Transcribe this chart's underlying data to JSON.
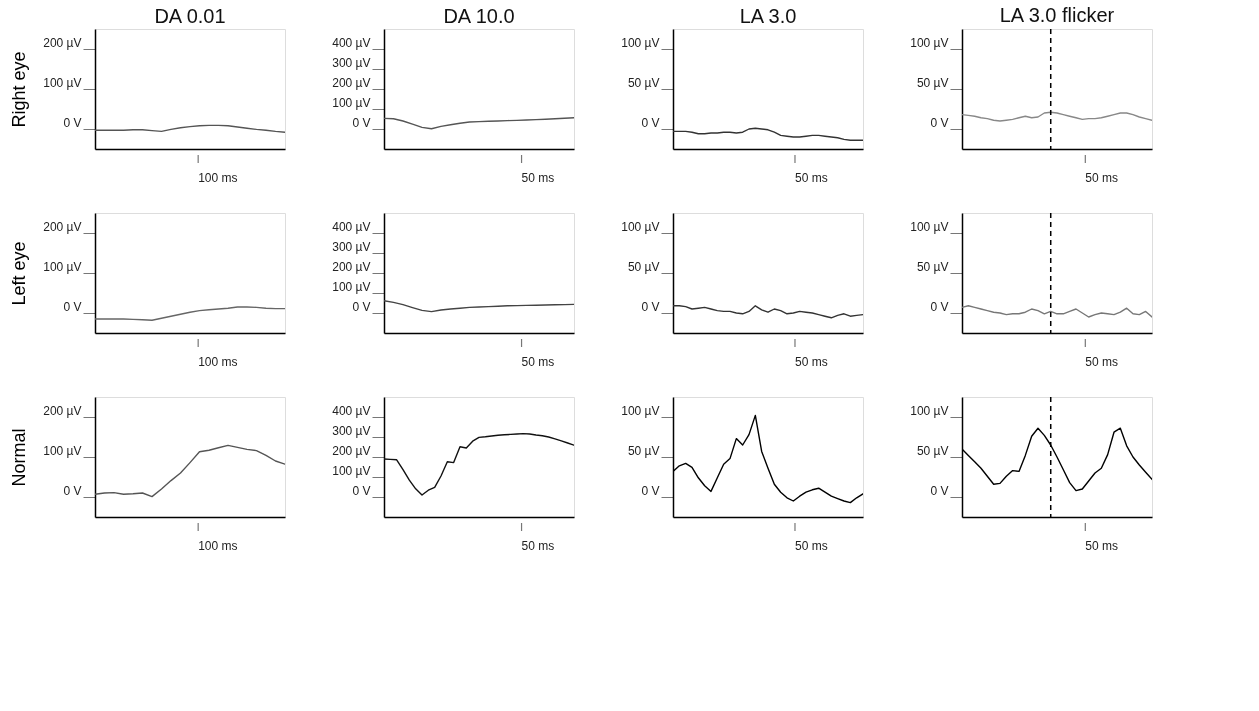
{
  "chart_data": [
    {
      "type": "line",
      "title": "DA 0.01",
      "ylabel": "Right eye",
      "grid": false,
      "categories": [
        null,
        null,
        null,
        null,
        null,
        null,
        null,
        null,
        null,
        null,
        null,
        null,
        null,
        null,
        null,
        null,
        null,
        null,
        null,
        null,
        null
      ],
      "ylim": [
        -50,
        250
      ],
      "yticks": [
        {
          "value": 0,
          "label": "0 V"
        },
        {
          "value": 100,
          "label": "100 µV"
        },
        {
          "value": 200,
          "label": "200 µV"
        }
      ],
      "annotations": [
        "100 ms"
      ],
      "series": [
        {
          "color": "#555555",
          "values": [
            -3,
            -3,
            -3,
            -3,
            -2,
            -2,
            -4,
            -6,
            -1,
            3,
            6,
            8,
            9,
            9,
            8,
            5,
            2,
            -1,
            -3,
            -6,
            -8
          ]
        }
      ]
    },
    {
      "type": "line",
      "title": "DA 10.0",
      "grid": false,
      "categories": [
        null,
        null,
        null,
        null,
        null,
        null,
        null,
        null,
        null,
        null,
        null,
        null,
        null,
        null,
        null,
        null,
        null,
        null,
        null,
        null,
        null
      ],
      "ylim": [
        -100,
        500
      ],
      "yticks": [
        {
          "value": 0,
          "label": "0 V"
        },
        {
          "value": 100,
          "label": "100 µV"
        },
        {
          "value": 200,
          "label": "200 µV"
        },
        {
          "value": 300,
          "label": "300 µV"
        },
        {
          "value": 400,
          "label": "400 µV"
        }
      ],
      "annotations": [
        "50 ms"
      ],
      "series": [
        {
          "color": "#555555",
          "values": [
            53,
            51,
            40,
            24,
            8,
            1,
            13,
            21,
            29,
            35,
            37,
            39,
            40,
            42,
            43,
            45,
            47,
            49,
            51,
            54,
            56
          ]
        }
      ]
    },
    {
      "type": "line",
      "title": "LA 3.0",
      "grid": false,
      "categories": [
        null,
        null,
        null,
        null,
        null,
        null,
        null,
        null,
        null,
        null,
        null,
        null,
        null,
        null,
        null,
        null,
        null,
        null,
        null,
        null,
        null,
        null,
        null,
        null,
        null,
        null,
        null,
        null,
        null,
        null,
        null
      ],
      "ylim": [
        -25,
        125
      ],
      "yticks": [
        {
          "value": 0,
          "label": "0 V"
        },
        {
          "value": 50,
          "label": "50 µV"
        },
        {
          "value": 100,
          "label": "100 µV"
        }
      ],
      "annotations": [
        "50 ms"
      ],
      "series": [
        {
          "color": "#333333",
          "values": [
            -3,
            -3,
            -3,
            -4,
            -6,
            -6,
            -5,
            -5,
            -4,
            -4,
            -5,
            -4,
            0,
            1,
            0,
            -1,
            -4,
            -8,
            -9,
            -10,
            -10,
            -9,
            -8,
            -8,
            -9,
            -10,
            -11,
            -13,
            -14,
            -14,
            -14
          ]
        }
      ]
    },
    {
      "type": "line",
      "title": "LA 3.0 flicker",
      "grid": false,
      "categories": [
        null,
        null,
        null,
        null,
        null,
        null,
        null,
        null,
        null,
        null,
        null,
        null,
        null,
        null,
        null,
        null,
        null,
        null,
        null,
        null,
        null,
        null,
        null,
        null,
        null,
        null,
        null,
        null,
        null,
        null,
        null
      ],
      "ylim": [
        -25,
        125
      ],
      "yticks": [
        {
          "value": 0,
          "label": "0 V"
        },
        {
          "value": 50,
          "label": "50 µV"
        },
        {
          "value": 100,
          "label": "100 µV"
        }
      ],
      "annotations": [
        "50 ms"
      ],
      "series": [
        {
          "color": "#888888",
          "values": [
            18,
            17,
            16,
            14,
            13,
            11,
            10,
            11,
            12,
            14,
            16,
            14,
            15,
            20,
            21,
            20,
            18,
            16,
            14,
            12,
            13,
            13,
            14,
            16,
            18,
            20,
            20,
            18,
            15,
            13,
            11
          ]
        }
      ]
    },
    {
      "type": "line",
      "ylabel": "Left eye",
      "grid": false,
      "categories": [
        null,
        null,
        null,
        null,
        null,
        null,
        null,
        null,
        null,
        null,
        null,
        null,
        null,
        null,
        null,
        null,
        null,
        null,
        null,
        null,
        null
      ],
      "ylim": [
        -50,
        250
      ],
      "yticks": [
        {
          "value": 0,
          "label": "0 V"
        },
        {
          "value": 100,
          "label": "100 µV"
        },
        {
          "value": 200,
          "label": "200 µV"
        }
      ],
      "annotations": [
        "100 ms"
      ],
      "series": [
        {
          "color": "#666666",
          "values": [
            -15,
            -15,
            -15,
            -15,
            -16,
            -17,
            -18,
            -13,
            -8,
            -3,
            2,
            6,
            8,
            10,
            12,
            15,
            15,
            14,
            12,
            11,
            11
          ]
        }
      ]
    },
    {
      "type": "line",
      "grid": false,
      "categories": [
        null,
        null,
        null,
        null,
        null,
        null,
        null,
        null,
        null,
        null,
        null,
        null,
        null,
        null,
        null,
        null,
        null,
        null,
        null,
        null,
        null
      ],
      "ylim": [
        -100,
        500
      ],
      "yticks": [
        {
          "value": 0,
          "label": "0 V"
        },
        {
          "value": 100,
          "label": "100 µV"
        },
        {
          "value": 200,
          "label": "200 µV"
        },
        {
          "value": 300,
          "label": "300 µV"
        },
        {
          "value": 400,
          "label": "400 µV"
        }
      ],
      "annotations": [
        "50 ms"
      ],
      "series": [
        {
          "color": "#444444",
          "values": [
            61,
            53,
            42,
            27,
            13,
            7,
            15,
            20,
            24,
            28,
            30,
            32,
            34,
            36,
            37,
            38,
            39,
            40,
            41,
            42,
            43
          ]
        }
      ]
    },
    {
      "type": "line",
      "grid": false,
      "categories": [
        null,
        null,
        null,
        null,
        null,
        null,
        null,
        null,
        null,
        null,
        null,
        null,
        null,
        null,
        null,
        null,
        null,
        null,
        null,
        null,
        null,
        null,
        null,
        null,
        null,
        null,
        null,
        null,
        null,
        null,
        null
      ],
      "ylim": [
        -25,
        125
      ],
      "yticks": [
        {
          "value": 0,
          "label": "0 V"
        },
        {
          "value": 50,
          "label": "50 µV"
        },
        {
          "value": 100,
          "label": "100 µV"
        }
      ],
      "annotations": [
        "50 ms"
      ],
      "series": [
        {
          "color": "#333333",
          "values": [
            9,
            9,
            8,
            5,
            6,
            7,
            5,
            3,
            2,
            2,
            0,
            -1,
            2,
            9,
            4,
            1,
            5,
            3,
            -1,
            0,
            2,
            1,
            0,
            -2,
            -4,
            -6,
            -3,
            -1,
            -4,
            -3,
            -2
          ]
        }
      ]
    },
    {
      "type": "line",
      "grid": false,
      "categories": [
        null,
        null,
        null,
        null,
        null,
        null,
        null,
        null,
        null,
        null,
        null,
        null,
        null,
        null,
        null,
        null,
        null,
        null,
        null,
        null,
        null,
        null,
        null,
        null,
        null,
        null,
        null,
        null,
        null,
        null,
        null
      ],
      "ylim": [
        -25,
        125
      ],
      "yticks": [
        {
          "value": 0,
          "label": "0 V"
        },
        {
          "value": 50,
          "label": "50 µV"
        },
        {
          "value": 100,
          "label": "100 µV"
        }
      ],
      "annotations": [
        "50 ms"
      ],
      "series": [
        {
          "color": "#777777",
          "values": [
            7,
            9,
            7,
            5,
            3,
            1,
            0,
            -2,
            -1,
            -1,
            1,
            5,
            3,
            -1,
            2,
            -1,
            -1,
            2,
            5,
            0,
            -5,
            -2,
            0,
            -1,
            -2,
            1,
            6,
            -1,
            -2,
            2,
            -5
          ]
        }
      ]
    },
    {
      "type": "line",
      "ylabel": "Normal",
      "grid": false,
      "categories": [
        null,
        null,
        null,
        null,
        null,
        null,
        null,
        null,
        null,
        null,
        null,
        null,
        null,
        null,
        null,
        null,
        null,
        null,
        null,
        null,
        null
      ],
      "ylim": [
        -50,
        250
      ],
      "yticks": [
        {
          "value": 0,
          "label": "0 V"
        },
        {
          "value": 100,
          "label": "100 µV"
        },
        {
          "value": 200,
          "label": "200 µV"
        }
      ],
      "annotations": [
        "100 ms"
      ],
      "series": [
        {
          "color": "#555555",
          "values": [
            7,
            10,
            11,
            7,
            8,
            10,
            1,
            20,
            41,
            60,
            86,
            113,
            117,
            123,
            129,
            124,
            119,
            116,
            104,
            90,
            82
          ]
        }
      ]
    },
    {
      "type": "line",
      "grid": false,
      "categories": [
        null,
        null,
        null,
        null,
        null,
        null,
        null,
        null,
        null,
        null,
        null,
        null,
        null,
        null,
        null,
        null,
        null,
        null,
        null,
        null,
        null,
        null,
        null,
        null,
        null,
        null,
        null,
        null,
        null,
        null,
        null
      ],
      "ylim": [
        -100,
        500
      ],
      "yticks": [
        {
          "value": 0,
          "label": "0 V"
        },
        {
          "value": 100,
          "label": "100 µV"
        },
        {
          "value": 200,
          "label": "200 µV"
        },
        {
          "value": 300,
          "label": "300 µV"
        },
        {
          "value": 400,
          "label": "400 µV"
        }
      ],
      "annotations": [
        "50 ms"
      ],
      "series": [
        {
          "color": "#111111",
          "values": [
            190,
            188,
            186,
            137,
            84,
            41,
            10,
            34,
            48,
            105,
            176,
            172,
            251,
            245,
            279,
            298,
            301,
            305,
            309,
            311,
            313,
            315,
            317,
            315,
            310,
            306,
            300,
            291,
            281,
            270,
            259
          ]
        }
      ]
    },
    {
      "type": "line",
      "grid": false,
      "categories": [
        null,
        null,
        null,
        null,
        null,
        null,
        null,
        null,
        null,
        null,
        null,
        null,
        null,
        null,
        null,
        null,
        null,
        null,
        null,
        null,
        null,
        null,
        null,
        null,
        null,
        null,
        null,
        null,
        null,
        null,
        null
      ],
      "ylim": [
        -25,
        125
      ],
      "yticks": [
        {
          "value": 0,
          "label": "0 V"
        },
        {
          "value": 50,
          "label": "50 µV"
        },
        {
          "value": 100,
          "label": "100 µV"
        }
      ],
      "annotations": [
        "50 ms"
      ],
      "series": [
        {
          "color": "#000000",
          "values": [
            32,
            39,
            42,
            37,
            24,
            14,
            7,
            24,
            41,
            48,
            73,
            65,
            78,
            102,
            57,
            36,
            16,
            6,
            -1,
            -5,
            1,
            6,
            9,
            11,
            6,
            1,
            -2,
            -5,
            -7,
            -1,
            4
          ]
        }
      ]
    },
    {
      "type": "line",
      "grid": false,
      "categories": [
        null,
        null,
        null,
        null,
        null,
        null,
        null,
        null,
        null,
        null,
        null,
        null,
        null,
        null,
        null,
        null,
        null,
        null,
        null,
        null,
        null,
        null,
        null,
        null,
        null,
        null,
        null,
        null,
        null,
        null,
        null
      ],
      "ylim": [
        -25,
        125
      ],
      "yticks": [
        {
          "value": 0,
          "label": "0 V"
        },
        {
          "value": 50,
          "label": "50 µV"
        },
        {
          "value": 100,
          "label": "100 µV"
        }
      ],
      "annotations": [
        "50 ms"
      ],
      "series": [
        {
          "color": "#000000",
          "values": [
            60,
            52,
            44,
            36,
            26,
            16,
            17,
            26,
            33,
            32,
            52,
            76,
            86,
            77,
            65,
            50,
            34,
            18,
            8,
            10,
            20,
            30,
            36,
            53,
            81,
            86,
            64,
            50,
            40,
            31,
            22
          ]
        }
      ]
    }
  ]
}
